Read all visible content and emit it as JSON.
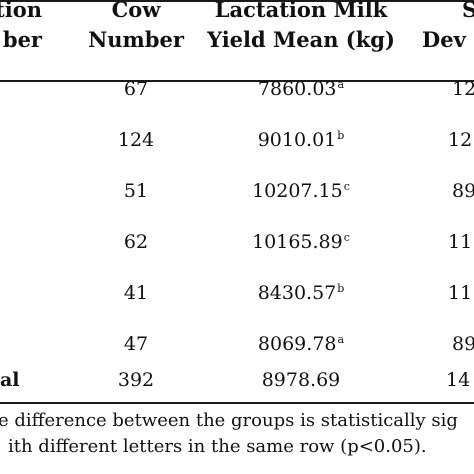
{
  "table": {
    "headers": {
      "col0": [
        "tion",
        "ber"
      ],
      "col1": [
        "Cow",
        "Number"
      ],
      "col2": [
        "Lactation Milk",
        "Yield Mean (kg)"
      ],
      "col3": [
        "S",
        "Dev"
      ]
    },
    "rows": [
      {
        "c1": "67",
        "c2": "7860.03",
        "c2sup": "a",
        "c3": "12"
      },
      {
        "c1": "124",
        "c2": "9010.01",
        "c2sup": "b",
        "c3": "12"
      },
      {
        "c1": "51",
        "c2": "10207.15",
        "c2sup": "c",
        "c3": "89"
      },
      {
        "c1": "62",
        "c2": "10165.89",
        "c2sup": "c",
        "c3": "11"
      },
      {
        "c1": "41",
        "c2": "8430.57",
        "c2sup": "b",
        "c3": "11"
      },
      {
        "c1": "47",
        "c2": "8069.78",
        "c2sup": "a",
        "c3": "89"
      }
    ],
    "total": {
      "c0": "al",
      "c1": "392",
      "c2": "8978.69",
      "c3": "14"
    }
  },
  "footnote": {
    "line1": "e difference between the groups is statistically sig",
    "line2": "ith different letters in the same row (p<0.05)."
  }
}
